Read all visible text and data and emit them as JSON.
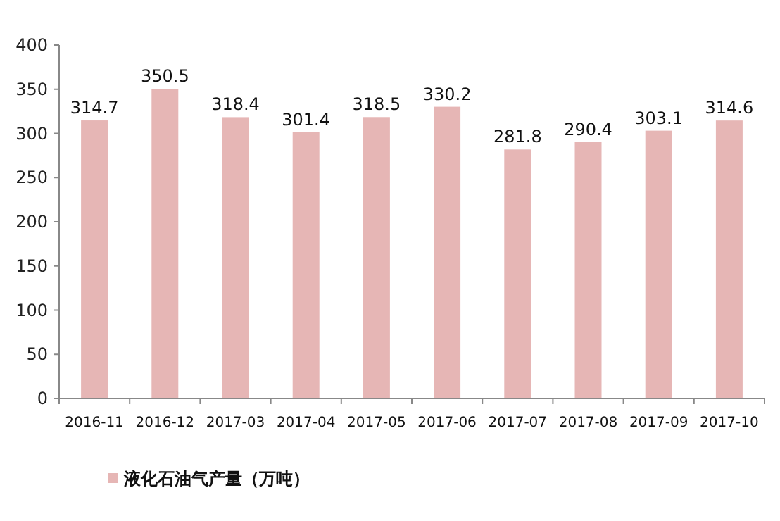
{
  "chart_data": {
    "type": "bar",
    "categories": [
      "2016-11",
      "2016-12",
      "2017-03",
      "2017-04",
      "2017-05",
      "2017-06",
      "2017-07",
      "2017-08",
      "2017-09",
      "2017-10"
    ],
    "series": [
      {
        "name": "液化石油气产量（万吨）",
        "color": "#e6b6b5",
        "values": [
          314.7,
          350.5,
          318.4,
          301.4,
          318.5,
          330.2,
          281.8,
          290.4,
          303.1,
          314.6
        ]
      }
    ],
    "ylim": [
      0,
      400
    ],
    "yticks": [
      0,
      50,
      100,
      150,
      200,
      250,
      300,
      350,
      400
    ],
    "data_labels": true,
    "legend": "bottom",
    "grid": false
  }
}
